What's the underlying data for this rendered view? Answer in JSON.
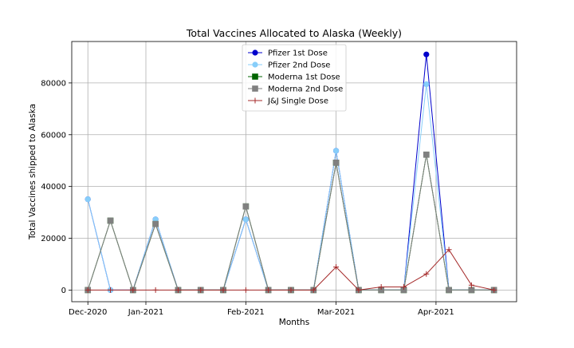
{
  "chart_data": {
    "type": "line",
    "title": "Total Vaccines Allocated to Alaska (Weekly)",
    "xlabel": "Months",
    "ylabel": "Total Vaccines shipped to Alaska",
    "x": [
      "2020-12-14",
      "2020-12-21",
      "2020-12-28",
      "2021-01-04",
      "2021-01-11",
      "2021-01-18",
      "2021-01-25",
      "2021-02-01",
      "2021-02-08",
      "2021-02-15",
      "2021-02-22",
      "2021-03-01",
      "2021-03-08",
      "2021-03-15",
      "2021-03-22",
      "2021-03-29",
      "2021-04-05",
      "2021-04-12",
      "2021-04-19"
    ],
    "xlim": [
      "2020-12-09",
      "2021-04-26"
    ],
    "ylim": [
      -4500,
      96000
    ],
    "xticks": [
      {
        "date": "2020-12-14",
        "label": "Dec-2020"
      },
      {
        "date": "2021-01-01",
        "label": "Jan-2021"
      },
      {
        "date": "2021-02-01",
        "label": "Feb-2021"
      },
      {
        "date": "2021-03-01",
        "label": "Mar-2021"
      },
      {
        "date": "2021-04-01",
        "label": "Apr-2021"
      }
    ],
    "yticks": [
      0,
      20000,
      40000,
      60000,
      80000
    ],
    "grid": true,
    "legend_position": "top-center",
    "series": [
      {
        "name": "Pfizer 1st Dose",
        "color": "#0000cc",
        "marker": "circle",
        "values": [
          35100,
          0,
          0,
          27300,
          0,
          0,
          0,
          27300,
          0,
          0,
          0,
          53800,
          0,
          0,
          0,
          91000,
          0,
          0,
          0
        ]
      },
      {
        "name": "Pfizer 2nd Dose",
        "color": "#87cefa",
        "marker": "circle",
        "values": [
          35100,
          0,
          0,
          27300,
          0,
          0,
          0,
          27300,
          0,
          0,
          0,
          53800,
          0,
          0,
          0,
          79500,
          0,
          0,
          0
        ]
      },
      {
        "name": "Moderna 1st Dose",
        "color": "#006400",
        "marker": "square",
        "values": [
          0,
          26800,
          0,
          25500,
          0,
          0,
          0,
          32300,
          0,
          0,
          0,
          49200,
          0,
          0,
          0,
          52300,
          0,
          0,
          0
        ]
      },
      {
        "name": "Moderna 2nd Dose",
        "color": "#808080",
        "marker": "square",
        "values": [
          0,
          26800,
          0,
          25500,
          0,
          0,
          0,
          32300,
          0,
          0,
          0,
          49200,
          0,
          0,
          0,
          52300,
          0,
          0,
          0
        ]
      },
      {
        "name": "J&J Single Dose",
        "color": "#a52a2a",
        "marker": "plus",
        "values": [
          0,
          0,
          0,
          0,
          0,
          0,
          0,
          0,
          0,
          0,
          0,
          8900,
          0,
          1200,
          1200,
          6200,
          15600,
          1900,
          0
        ]
      }
    ]
  }
}
